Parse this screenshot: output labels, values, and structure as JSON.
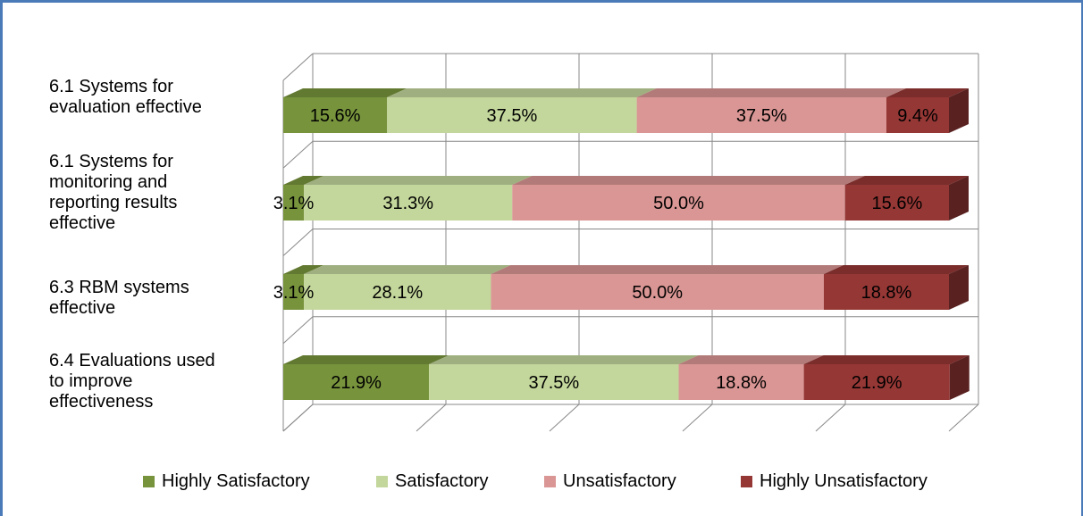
{
  "chart_data": {
    "type": "bar",
    "orientation": "horizontal",
    "stacked": true,
    "percent": true,
    "categories": [
      "6.1 Systems for\nevaluation  effective",
      "6.1 Systems for\nmonitoring and\nreporting results\neffective",
      "6.3 RBM systems\neffective",
      "6.4 Evaluations used\nto improve\neffectiveness"
    ],
    "series": [
      {
        "name": "Highly Satisfactory",
        "color": "#77933c",
        "values": [
          15.6,
          3.1,
          3.1,
          21.9
        ],
        "labels": [
          "15.6%",
          "3.1%",
          "3.1%",
          "21.9%"
        ]
      },
      {
        "name": "Satisfactory",
        "color": "#c3d69b",
        "values": [
          37.5,
          31.3,
          28.1,
          37.5
        ],
        "labels": [
          "37.5%",
          "31.3%",
          "28.1%",
          "37.5%"
        ]
      },
      {
        "name": "Unsatisfactory",
        "color": "#d99694",
        "values": [
          37.5,
          50.0,
          50.0,
          18.8
        ],
        "labels": [
          "37.5%",
          "50.0%",
          "50.0%",
          "18.8%"
        ]
      },
      {
        "name": "Highly Unsatisfactory",
        "color": "#953735",
        "values": [
          9.4,
          15.6,
          18.8,
          21.9
        ],
        "labels": [
          "9.4%",
          "15.6%",
          "18.8%",
          "21.9%"
        ]
      }
    ],
    "xlim": [
      0,
      100
    ],
    "grid": true,
    "legend_position": "bottom",
    "title": "",
    "xlabel": "",
    "ylabel": ""
  }
}
